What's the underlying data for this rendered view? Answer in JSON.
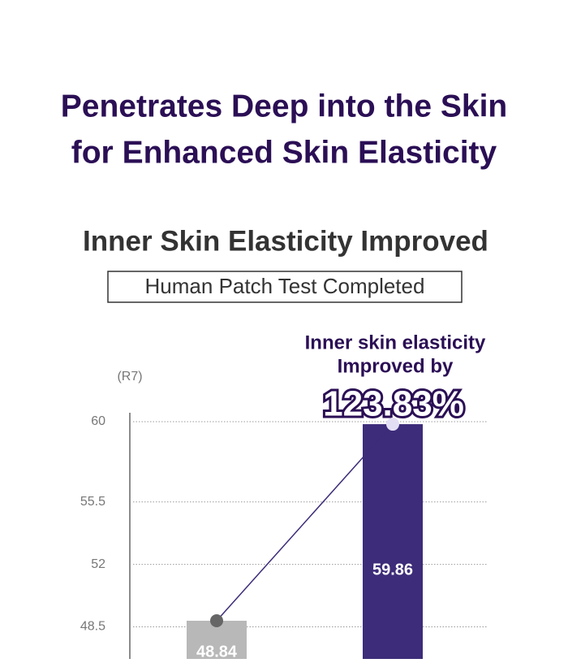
{
  "chart_data": {
    "type": "bar",
    "title": [
      "Penetrates Deep into the Skin",
      "for Enhanced Skin Elasticity"
    ],
    "subtitle": "Inner Skin Elasticity Improved",
    "badge": "Human Patch Test Completed",
    "annotation": [
      "Inner skin elasticity",
      "Improved by",
      "123.83%"
    ],
    "y_label": "(R7)",
    "categories": [
      null,
      null
    ],
    "values": [
      48.84,
      59.86
    ],
    "colors": [
      "#b8b8b8",
      "#3d2c79"
    ],
    "ylim": [
      46.7,
      60.5
    ],
    "yticks": [
      60,
      55.5,
      52,
      48.5
    ],
    "grid": true
  }
}
